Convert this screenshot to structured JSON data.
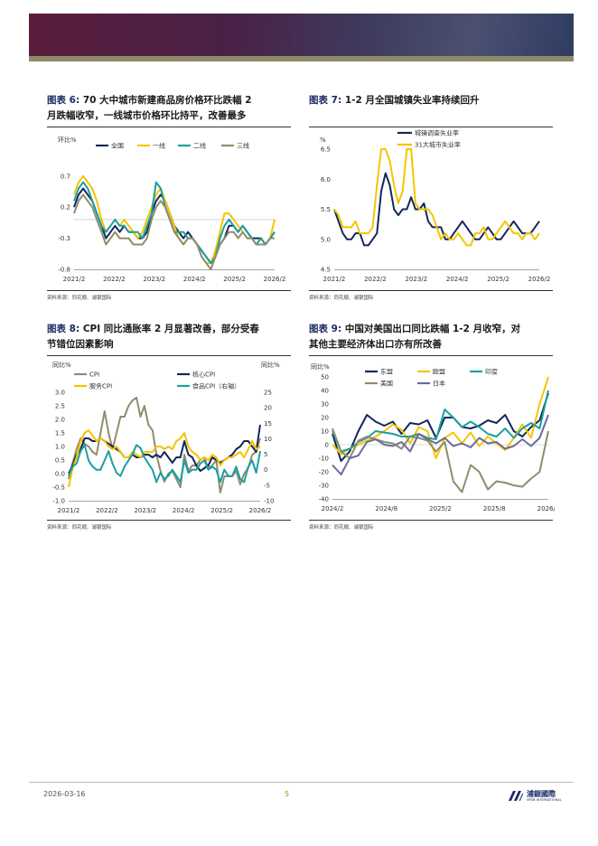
{
  "colors": {
    "navy": "#14285c",
    "yellow": "#f5c400",
    "teal": "#1aa0a0",
    "olive": "#8f8d6c",
    "purple": "#6a6c9a"
  },
  "figures": [
    {
      "label": "图表 6:",
      "title": "70 大中城市新建商品房价格环比跌幅 2 月跌幅收窄，一线城市价格环比持平，改善最多",
      "source": "资料来源：同花顺、浦银国际"
    },
    {
      "label": "图表 7:",
      "title": "1-2 月全国城镇失业率持续回升",
      "source": "资料来源：同花顺、浦银国际"
    },
    {
      "label": "图表 8:",
      "title": "CPI 同比通胀率 2 月显著改善，部分受春节错位因素影响",
      "source": "资料来源：同花顺、浦银国际"
    },
    {
      "label": "图表 9:",
      "title": "中国对美国出口同比跌幅 1-2 月收窄，对其他主要经济体出口亦有所改善",
      "source": "资料来源：同花顺、浦银国际"
    }
  ],
  "fig6_title_line1": "70 大中城市新建商品房价格环比跌幅 2",
  "fig6_title_line2": "月跌幅收窄，一线城市价格环比持平，改善最多",
  "fig8_title_line1": "CPI 同比通胀率 2 月显著改善，部分受春",
  "fig8_title_line2": "节错位因素影响",
  "fig9_title_line1": "中国对美国出口同比跌幅 1-2 月收窄，对",
  "fig9_title_line2": "其他主要经济体出口亦有所改善",
  "footer": {
    "date": "2026-03-16",
    "page": "5",
    "logo_cn": "浦銀國際",
    "logo_en": "SPDB INTERNATIONAL"
  },
  "chart_data": [
    {
      "id": "fig6",
      "type": "line",
      "ylabel": "环比%",
      "ylim": [
        -0.8,
        0.9
      ],
      "yticks": [
        0.7,
        0.2,
        -0.3,
        -0.8
      ],
      "x_ticks": [
        "2021/2",
        "2022/2",
        "2023/2",
        "2024/2",
        "2025/2",
        "2026/2"
      ],
      "series": [
        {
          "name": "全国",
          "color": "#14285c",
          "values": [
            0.2,
            0.4,
            0.5,
            0.4,
            0.3,
            0.1,
            -0.1,
            -0.3,
            -0.2,
            -0.1,
            -0.2,
            -0.1,
            -0.2,
            -0.2,
            -0.3,
            -0.3,
            -0.2,
            0.1,
            0.3,
            0.4,
            0.3,
            0.1,
            -0.1,
            -0.2,
            -0.3,
            -0.2,
            -0.3,
            -0.4,
            -0.5,
            -0.6,
            -0.7,
            -0.6,
            -0.4,
            -0.3,
            -0.1,
            -0.1,
            -0.2,
            -0.1,
            -0.2,
            -0.3,
            -0.3,
            -0.3,
            -0.4,
            -0.3,
            -0.2
          ]
        },
        {
          "name": "一线",
          "color": "#f5c400",
          "values": [
            0.4,
            0.6,
            0.7,
            0.6,
            0.5,
            0.3,
            0.0,
            -0.2,
            -0.1,
            0.0,
            -0.1,
            0.0,
            -0.1,
            -0.2,
            -0.3,
            -0.2,
            0.0,
            0.2,
            0.4,
            0.5,
            0.3,
            0.1,
            -0.1,
            -0.3,
            -0.4,
            -0.3,
            -0.3,
            -0.4,
            -0.6,
            -0.7,
            -0.7,
            -0.5,
            -0.2,
            0.1,
            0.1,
            0.0,
            -0.1,
            -0.2,
            -0.3,
            -0.3,
            -0.4,
            -0.3,
            -0.4,
            -0.3,
            0.0
          ]
        },
        {
          "name": "二线",
          "color": "#1aa0a0",
          "values": [
            0.3,
            0.5,
            0.6,
            0.5,
            0.3,
            0.1,
            -0.1,
            -0.2,
            -0.1,
            0.0,
            -0.1,
            -0.1,
            -0.2,
            -0.2,
            -0.2,
            -0.3,
            -0.1,
            0.1,
            0.6,
            0.5,
            0.2,
            0.0,
            -0.2,
            -0.2,
            -0.2,
            -0.3,
            -0.3,
            -0.4,
            -0.5,
            -0.6,
            -0.7,
            -0.6,
            -0.3,
            -0.1,
            0.0,
            -0.1,
            -0.2,
            -0.1,
            -0.2,
            -0.3,
            -0.4,
            -0.3,
            -0.4,
            -0.3,
            -0.2
          ]
        },
        {
          "name": "三线",
          "color": "#8f8d6c",
          "values": [
            0.1,
            0.3,
            0.4,
            0.3,
            0.2,
            0.0,
            -0.2,
            -0.4,
            -0.3,
            -0.2,
            -0.3,
            -0.3,
            -0.3,
            -0.4,
            -0.4,
            -0.4,
            -0.3,
            0.0,
            0.2,
            0.3,
            0.2,
            0.0,
            -0.2,
            -0.3,
            -0.4,
            -0.3,
            -0.3,
            -0.4,
            -0.6,
            -0.7,
            -0.8,
            -0.6,
            -0.4,
            -0.3,
            -0.2,
            -0.2,
            -0.3,
            -0.2,
            -0.3,
            -0.3,
            -0.4,
            -0.4,
            -0.4,
            -0.3,
            -0.3
          ]
        }
      ]
    },
    {
      "id": "fig7",
      "type": "line",
      "ylabel": "%",
      "ylim": [
        4.5,
        6.5
      ],
      "yticks": [
        6.5,
        6.0,
        5.5,
        5.0,
        4.5
      ],
      "x_ticks": [
        "2021/2",
        "2022/2",
        "2023/2",
        "2024/2",
        "2025/2",
        "2026/2"
      ],
      "series": [
        {
          "name": "城镇调查失业率",
          "color": "#14285c",
          "values": [
            5.5,
            5.3,
            5.1,
            5.0,
            5.0,
            5.1,
            5.1,
            4.9,
            4.9,
            5.0,
            5.1,
            5.8,
            6.1,
            5.9,
            5.5,
            5.4,
            5.5,
            5.5,
            5.7,
            5.5,
            5.5,
            5.6,
            5.3,
            5.2,
            5.2,
            5.2,
            5.0,
            5.0,
            5.1,
            5.2,
            5.3,
            5.2,
            5.1,
            5.0,
            5.0,
            5.1,
            5.2,
            5.1,
            5.0,
            5.0,
            5.1,
            5.2,
            5.3,
            5.2,
            5.1,
            5.1,
            5.1,
            5.2,
            5.3
          ]
        },
        {
          "name": "31大城市失业率",
          "color": "#f5c400",
          "values": [
            5.5,
            5.4,
            5.2,
            5.2,
            5.2,
            5.3,
            5.1,
            5.1,
            5.1,
            5.2,
            5.9,
            6.5,
            6.5,
            6.3,
            5.9,
            5.6,
            5.8,
            6.5,
            6.5,
            5.6,
            5.5,
            5.5,
            5.5,
            5.4,
            5.2,
            5.0,
            5.1,
            5.0,
            5.0,
            5.1,
            5.0,
            4.9,
            4.9,
            5.1,
            5.1,
            5.2,
            5.0,
            5.0,
            5.1,
            5.2,
            5.3,
            5.2,
            5.1,
            5.1,
            5.0,
            5.1,
            5.1,
            5.0,
            5.1
          ]
        }
      ]
    },
    {
      "id": "fig8",
      "type": "line",
      "ylabel": "同比%",
      "ylabel_right": "同比%",
      "ylim": [
        -1.0,
        3.0
      ],
      "ylim_right": [
        -10,
        25
      ],
      "yticks": [
        3.0,
        2.5,
        2.0,
        1.5,
        1.0,
        0.5,
        0.0,
        -0.5,
        -1.0
      ],
      "yticks_right": [
        25,
        20,
        15,
        10,
        5,
        0,
        -5,
        -10
      ],
      "x_ticks": [
        "2021/2",
        "2022/2",
        "2023/2",
        "2024/2",
        "2025/2",
        "2026/2"
      ],
      "series": [
        {
          "name": "CPI",
          "color": "#8f8d6c",
          "axis": "left",
          "values": [
            -0.2,
            0.4,
            0.9,
            1.3,
            1.1,
            1.0,
            0.8,
            0.7,
            1.5,
            2.3,
            1.5,
            0.9,
            1.5,
            2.1,
            2.1,
            2.5,
            2.7,
            2.8,
            2.1,
            2.5,
            1.8,
            1.6,
            0.7,
            0.1,
            -0.3,
            0.0,
            0.1,
            -0.2,
            -0.5,
            0.7,
            0.1,
            0.3,
            0.3,
            0.5,
            0.6,
            0.2,
            0.3,
            0.5,
            -0.7,
            -0.1,
            -0.1,
            -0.1,
            0.1,
            -0.4,
            0.0,
            0.2,
            0.7,
            0.8,
            1.3
          ]
        },
        {
          "name": "核心CPI",
          "color": "#14285c",
          "axis": "left",
          "values": [
            0.0,
            0.3,
            0.7,
            0.9,
            1.3,
            1.3,
            1.2,
            1.2,
            1.3,
            1.2,
            1.1,
            1.0,
            0.9,
            0.8,
            0.6,
            0.6,
            0.7,
            0.6,
            0.6,
            0.7,
            0.7,
            0.6,
            0.7,
            0.6,
            0.8,
            0.6,
            0.4,
            0.6,
            0.6,
            1.2,
            0.7,
            0.6,
            0.3,
            0.1,
            0.2,
            0.3,
            0.6,
            0.5,
            0.4,
            0.5,
            0.6,
            0.7,
            0.9,
            1.0,
            1.2,
            1.2,
            1.0,
            0.8,
            1.8
          ]
        },
        {
          "name": "服务CPI",
          "color": "#f5c400",
          "axis": "left",
          "values": [
            -0.5,
            0.2,
            0.6,
            1.2,
            1.5,
            1.6,
            1.4,
            1.2,
            1.3,
            1.2,
            1.0,
            0.9,
            1.0,
            0.8,
            0.6,
            0.6,
            0.8,
            0.7,
            0.6,
            0.8,
            0.8,
            0.8,
            1.0,
            1.0,
            0.9,
            1.0,
            0.9,
            1.2,
            1.3,
            1.5,
            1.0,
            0.8,
            0.7,
            0.5,
            0.6,
            0.5,
            0.7,
            0.6,
            0.3,
            0.5,
            0.6,
            0.6,
            0.7,
            0.8,
            0.6,
            0.9,
            1.2,
            0.9,
            1.0
          ]
        },
        {
          "name": "食品CPI（右轴）",
          "color": "#1aa0a0",
          "axis": "right",
          "values": [
            -2,
            1,
            2,
            6,
            8,
            3,
            1,
            0,
            0,
            3,
            6,
            2,
            -1,
            -2,
            1,
            3,
            5,
            8,
            7,
            4,
            2,
            0,
            -4,
            -1,
            -3,
            -2,
            0,
            -2,
            -4,
            3,
            -1,
            0,
            0,
            2,
            3,
            0,
            1,
            0,
            -4,
            0,
            -2,
            -2,
            1,
            -3,
            -4,
            1,
            3,
            -1,
            6
          ]
        }
      ]
    },
    {
      "id": "fig9",
      "type": "line",
      "ylabel": "同比%",
      "ylim": [
        -40,
        50
      ],
      "yticks": [
        50,
        40,
        30,
        20,
        10,
        0,
        -10,
        -20,
        -30,
        -40
      ],
      "x_ticks": [
        "2024/2",
        "2024/8",
        "2025/2",
        "2025/8",
        "2026/2"
      ],
      "series": [
        {
          "name": "东盟",
          "color": "#14285c",
          "values": [
            8,
            -12,
            -5,
            10,
            22,
            17,
            14,
            17,
            8,
            16,
            15,
            18,
            5,
            20,
            20,
            13,
            12,
            14,
            18,
            16,
            22,
            10,
            6,
            13,
            18,
            38
          ]
        },
        {
          "name": "欧盟",
          "color": "#f5c400",
          "values": [
            0,
            -7,
            -3,
            0,
            3,
            6,
            10,
            15,
            11,
            1,
            13,
            10,
            -10,
            5,
            9,
            1,
            9,
            -1,
            6,
            1,
            -4,
            5,
            15,
            5,
            30,
            50
          ]
        },
        {
          "name": "印度",
          "color": "#1aa0a0",
          "values": [
            10,
            -5,
            -3,
            2,
            5,
            10,
            9,
            8,
            6,
            6,
            8,
            5,
            4,
            26,
            20,
            13,
            17,
            13,
            8,
            6,
            12,
            5,
            12,
            16,
            12,
            40
          ]
        },
        {
          "name": "美国",
          "color": "#8f8d6c",
          "values": [
            12,
            -5,
            -10,
            3,
            6,
            4,
            2,
            1,
            -3,
            6,
            5,
            3,
            -5,
            2,
            -27,
            -35,
            -15,
            -20,
            -33,
            -27,
            -28,
            -30,
            -31,
            -25,
            -20,
            10
          ]
        },
        {
          "name": "日本",
          "color": "#6a6c9a",
          "values": [
            -15,
            -22,
            -10,
            -8,
            2,
            4,
            0,
            -1,
            2,
            -5,
            8,
            4,
            1,
            5,
            -1,
            1,
            -2,
            5,
            1,
            2,
            -3,
            -1,
            4,
            -1,
            5,
            22
          ]
        }
      ]
    }
  ]
}
